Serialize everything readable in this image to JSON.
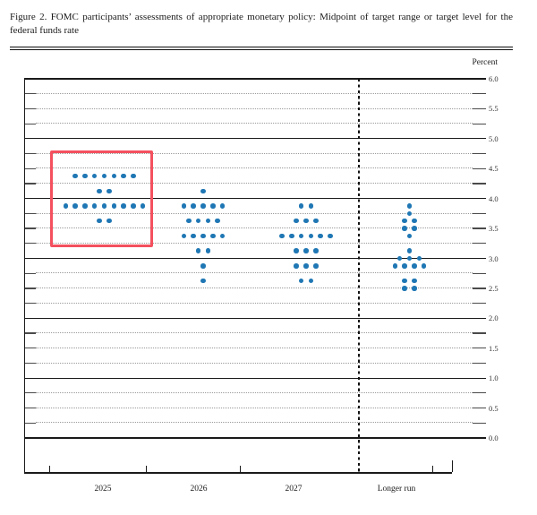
{
  "figure": {
    "title": "Figure 2.  FOMC participants’ assessments of appropriate monetary policy:  Midpoint of target range or target level for the federal funds rate"
  },
  "chart_data": {
    "type": "scatter",
    "subtype": "fomc-dot-plot",
    "title": "Figure 2. FOMC participants’ assessments of appropriate monetary policy: Midpoint of target range or target level for the federal funds rate",
    "xlabel": "",
    "ylabel": "Percent",
    "ylim": [
      0.0,
      6.0
    ],
    "grid_step": 0.25,
    "label_step": 0.5,
    "grid": "dotted-quarters-solid-integers",
    "y_tick_labels": [
      "6.0",
      "5.5",
      "5.0",
      "4.5",
      "4.0",
      "3.5",
      "3.0",
      "2.5",
      "2.0",
      "1.5",
      "1.0",
      "0.5",
      "0.0"
    ],
    "categories": [
      "2025",
      "2026",
      "2027",
      "Longer run"
    ],
    "series": [
      {
        "name": "2025",
        "points": [
          {
            "rate": 4.375,
            "count": 7
          },
          {
            "rate": 4.125,
            "count": 2
          },
          {
            "rate": 3.875,
            "count": 9
          },
          {
            "rate": 3.625,
            "count": 2
          }
        ]
      },
      {
        "name": "2026",
        "points": [
          {
            "rate": 4.125,
            "count": 1
          },
          {
            "rate": 3.875,
            "count": 5
          },
          {
            "rate": 3.625,
            "count": 4
          },
          {
            "rate": 3.375,
            "count": 5
          },
          {
            "rate": 3.125,
            "count": 2
          },
          {
            "rate": 2.875,
            "count": 1
          },
          {
            "rate": 2.625,
            "count": 1
          }
        ]
      },
      {
        "name": "2027",
        "points": [
          {
            "rate": 3.875,
            "count": 2
          },
          {
            "rate": 3.625,
            "count": 3
          },
          {
            "rate": 3.375,
            "count": 6
          },
          {
            "rate": 3.125,
            "count": 3
          },
          {
            "rate": 2.875,
            "count": 3
          },
          {
            "rate": 2.625,
            "count": 2
          }
        ]
      },
      {
        "name": "Longer run",
        "points": [
          {
            "rate": 3.875,
            "count": 1
          },
          {
            "rate": 3.75,
            "count": 1
          },
          {
            "rate": 3.625,
            "count": 2
          },
          {
            "rate": 3.5,
            "count": 2
          },
          {
            "rate": 3.375,
            "count": 1
          },
          {
            "rate": 3.125,
            "count": 1
          },
          {
            "rate": 3.0,
            "count": 3
          },
          {
            "rate": 2.875,
            "count": 4
          },
          {
            "rate": 2.625,
            "count": 2
          },
          {
            "rate": 2.5,
            "count": 2
          }
        ]
      }
    ],
    "annotations": [
      {
        "type": "highlight-box",
        "target": "2025-projections",
        "color": "#f4505e"
      }
    ],
    "colors": {
      "dot": "#1f77b4",
      "highlight": "#f4505e",
      "solid_grid": "#1a1a1a",
      "dotted_grid": "#9a9a9a"
    }
  }
}
